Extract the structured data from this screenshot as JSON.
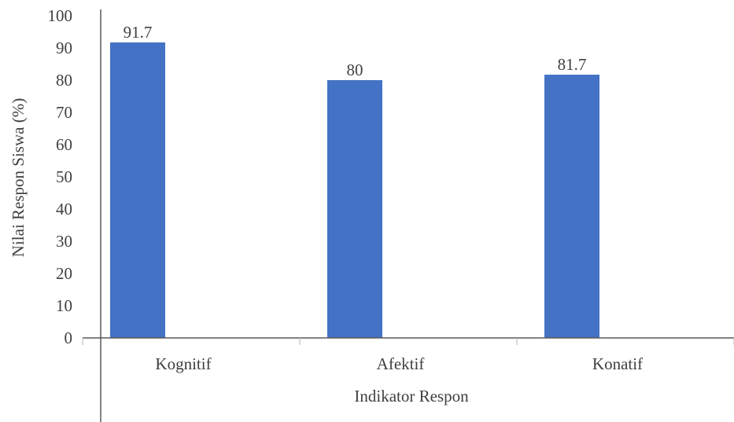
{
  "chart_data": {
    "type": "bar",
    "categories": [
      "Kognitif",
      "Afektif",
      "Konatif"
    ],
    "values": [
      91.7,
      80,
      81.7
    ],
    "data_labels": [
      "91.7",
      "80",
      "81.7"
    ],
    "title": "",
    "xlabel": "Indikator Respon",
    "ylabel": "Nilai Respon Siswa (%)",
    "ylim": [
      0,
      100
    ],
    "yticks": [
      "0",
      "10",
      "20",
      "30",
      "40",
      "50",
      "60",
      "70",
      "80",
      "90",
      "100"
    ],
    "grid": false,
    "legend": "none",
    "bar_color": "#4472C4",
    "axis_color": "#595959",
    "text_color": "#404040"
  }
}
